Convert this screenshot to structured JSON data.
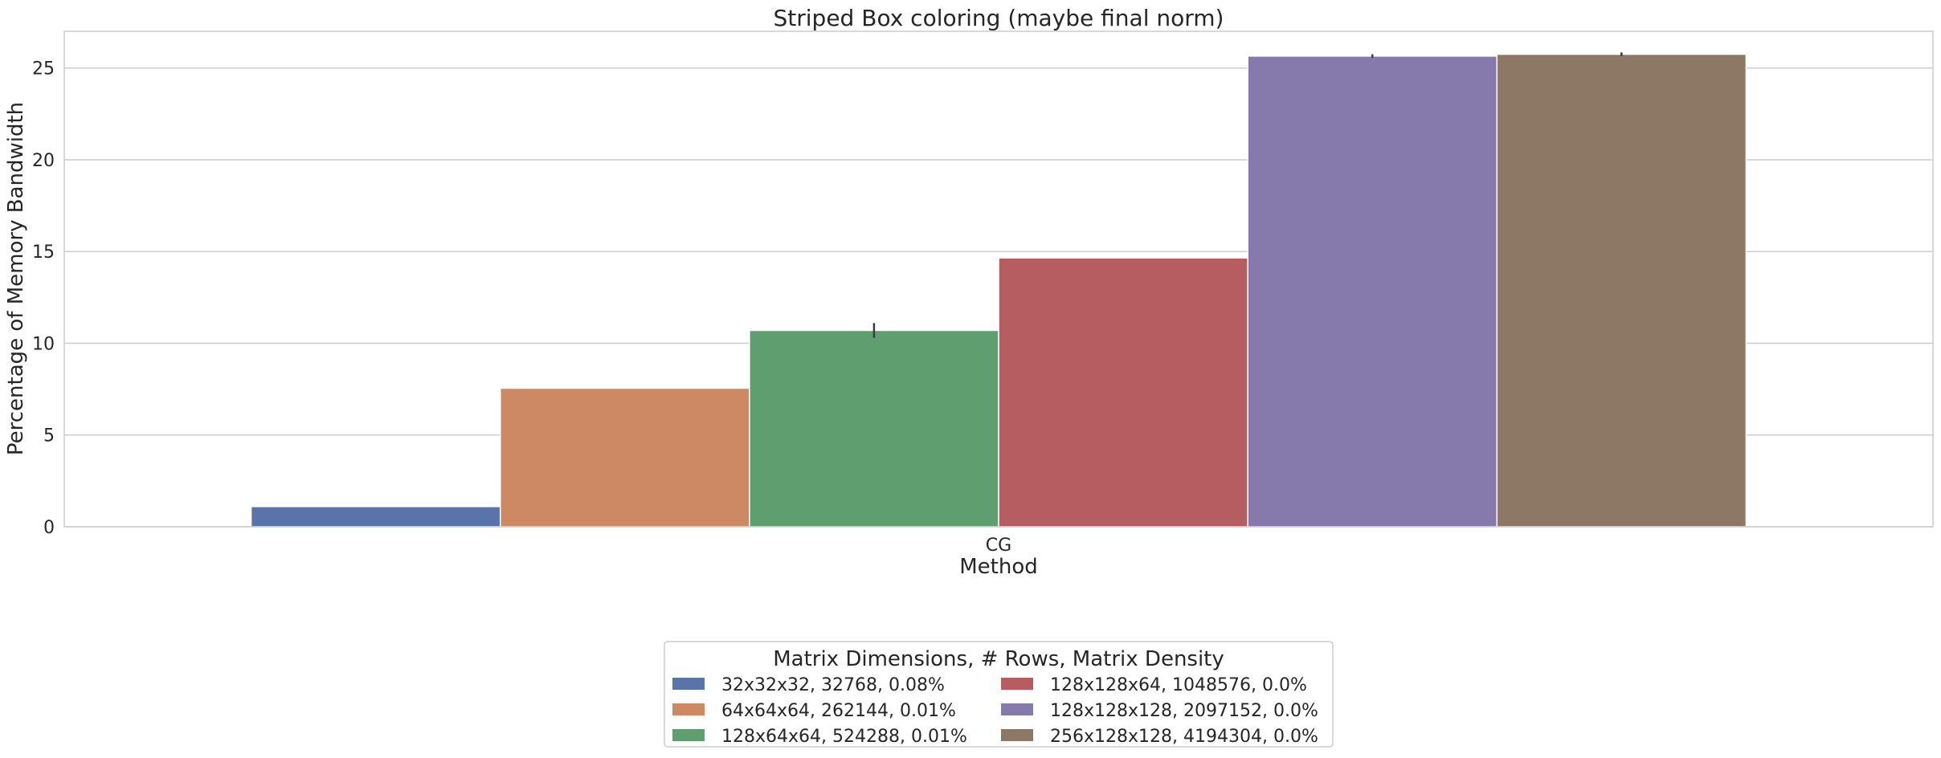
{
  "chart_data": {
    "type": "bar",
    "title": "Striped Box coloring (maybe final norm)",
    "xlabel": "Method",
    "ylabel": "Percentage of Memory Bandwidth",
    "categories": [
      "CG"
    ],
    "ylim": [
      0,
      27
    ],
    "yticks": [
      0,
      5,
      10,
      15,
      20,
      25
    ],
    "grid": "horizontal",
    "legend": {
      "title": "Matrix Dimensions, # Rows, Matrix Density",
      "placement": "bottom-center",
      "columns": 2
    },
    "series": [
      {
        "name": "32x32x32, 32768, 0.08%",
        "color": "#5874a8",
        "values": [
          1.1
        ],
        "error": [
          0
        ]
      },
      {
        "name": "64x64x64, 262144, 0.01%",
        "color": "#cc8963",
        "values": [
          7.55
        ],
        "error": [
          0
        ]
      },
      {
        "name": "128x64x64, 524288, 0.01%",
        "color": "#5f9e6e",
        "values": [
          10.7
        ],
        "error": [
          0.4
        ]
      },
      {
        "name": "128x128x64, 1048576, 0.0%",
        "color": "#b55d60",
        "values": [
          14.65
        ],
        "error": [
          0
        ]
      },
      {
        "name": "128x128x128, 2097152, 0.0%",
        "color": "#857aab",
        "values": [
          25.65
        ],
        "error": [
          0.1
        ]
      },
      {
        "name": "256x128x128, 4194304, 0.0%",
        "color": "#8d7866",
        "values": [
          25.75
        ],
        "error": [
          0.1
        ]
      }
    ]
  }
}
